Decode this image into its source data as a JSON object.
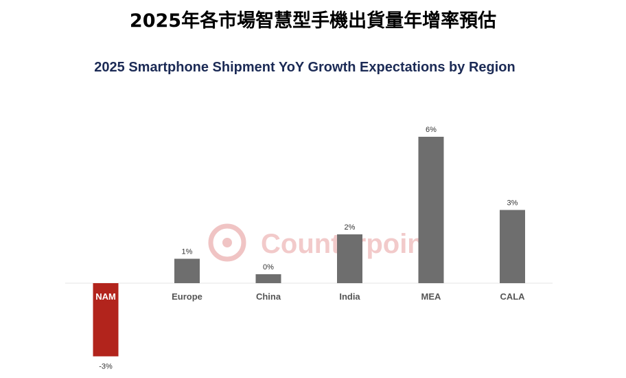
{
  "page_title": "2025年各市場智慧型手機出貨量年增率預估",
  "watermark": "Counterpoint",
  "colors": {
    "negative_bar": "#b2241c",
    "positive_bar": "#6e6e6e",
    "title_navy": "#1b2a55",
    "watermark": "#e8b5b5"
  },
  "chart_data": {
    "type": "bar",
    "title": "2025 Smartphone Shipment YoY Growth Expectations by Region",
    "xlabel": "",
    "ylabel": "",
    "categories": [
      "NAM",
      "Europe",
      "China",
      "India",
      "MEA",
      "CALA"
    ],
    "values": [
      -3,
      1,
      0,
      2,
      6,
      3
    ],
    "value_labels": [
      "-3%",
      "1%",
      "0%",
      "2%",
      "6%",
      "3%"
    ],
    "ylim": [
      -3,
      6
    ],
    "grid": false,
    "legend": "none"
  }
}
